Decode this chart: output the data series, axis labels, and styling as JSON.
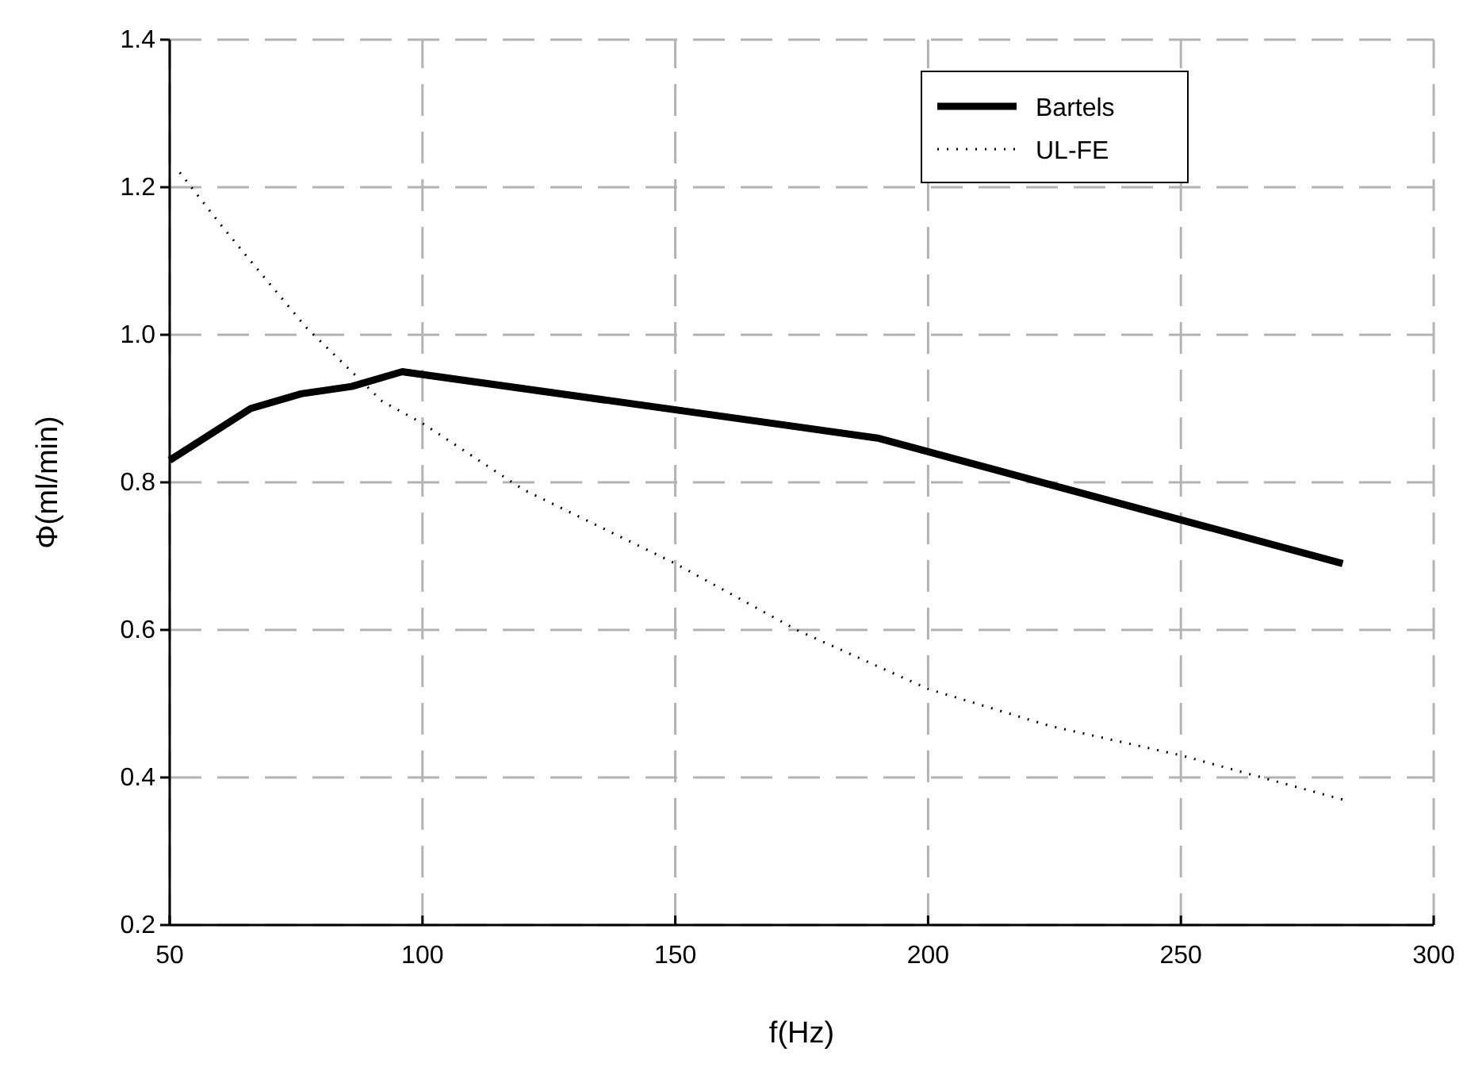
{
  "chart_data": {
    "type": "line",
    "xlabel": "f(Hz)",
    "ylabel": "Φ(ml/min)",
    "xlim": [
      50,
      300
    ],
    "xticks": [
      50,
      100,
      150,
      200,
      250,
      300
    ],
    "ylim": [
      0.2,
      1.4
    ],
    "yticks": [
      {
        "value": 0.2,
        "label": "0.2"
      },
      {
        "value": 0.4,
        "label": "0.4"
      },
      {
        "value": 0.6,
        "label": "0.6"
      },
      {
        "value": 0.8,
        "label": "0.8"
      },
      {
        "value": 1.0,
        "label": "1.0"
      },
      {
        "value": 1.2,
        "label": "1.2"
      },
      {
        "value": 1.4,
        "label": "1.4"
      }
    ],
    "grid": true,
    "legend": "top right",
    "marker": "none",
    "series": [
      {
        "name": "Bartels",
        "color": "#000000",
        "line_style": "solid",
        "x": [
          50,
          66,
          76,
          86,
          96,
          190,
          282
        ],
        "values": [
          0.83,
          0.9,
          0.92,
          0.93,
          0.95,
          0.86,
          0.69
        ]
      },
      {
        "name": "UL-FE",
        "color": "#000000",
        "line_style": "dotted",
        "x": [
          52,
          60,
          66,
          77,
          92,
          100,
          120,
          150,
          174,
          200,
          224,
          250,
          282
        ],
        "values": [
          1.22,
          1.15,
          1.1,
          1.01,
          0.91,
          0.88,
          0.79,
          0.69,
          0.6,
          0.52,
          0.47,
          0.43,
          0.37
        ]
      }
    ]
  }
}
